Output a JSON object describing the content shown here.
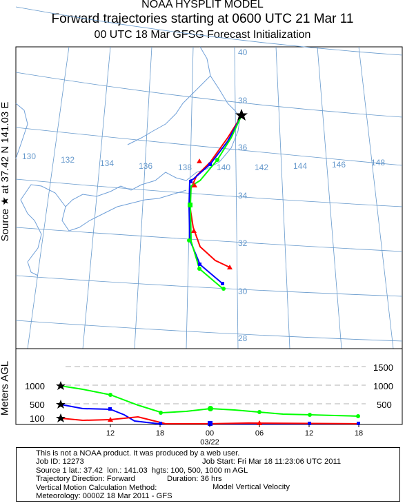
{
  "title": {
    "line1": "NOAA HYSPLIT MODEL",
    "line2": "Forward trajectories starting at 0600 UTC 21 Mar 11",
    "line3": "00 UTC 18 Mar    GFSG  Forecast Initialization"
  },
  "source_label": "Source ★ at    37.42 N  141.03 E",
  "vertical_label": "Meters AGL",
  "map": {
    "lat_labels": [
      "40",
      "38",
      "36",
      "34",
      "32",
      "30",
      "28"
    ],
    "lon_labels": [
      "130",
      "132",
      "134",
      "136",
      "138",
      "140",
      "142",
      "144",
      "146",
      "148"
    ],
    "source": {
      "lat": 37.42,
      "lon": 141.03
    },
    "colors": {
      "red": "#ff0000",
      "blue": "#0000ff",
      "green": "#00ff00",
      "grid": "#6699cc",
      "coast": "#6f9fd8"
    }
  },
  "trajectories": [
    {
      "height_m": 100,
      "color": "#ff0000",
      "marker": "triangle"
    },
    {
      "height_m": 500,
      "color": "#0000ff",
      "marker": "square"
    },
    {
      "height_m": 1000,
      "color": "#00ff00",
      "marker": "circle"
    }
  ],
  "height_panel": {
    "left_labels": [
      "1000",
      "500",
      "100"
    ],
    "right_labels": [
      "1500",
      "1000",
      "500"
    ],
    "x_ticks": [
      "12",
      "18",
      "00",
      "06",
      "12",
      "18"
    ],
    "date_label": "03/22"
  },
  "footer": {
    "line1": "This is not a NOAA product. It was produced by a web user.",
    "job_id": "Job ID: 12273",
    "job_start": "Job Start: Fri Mar 18 11:23:06 UTC 2011",
    "source": "Source 1 lat.: 37.42  lon.: 141.03  hgts: 100, 500, 1000 m AGL",
    "direction": "Trajectory Direction: Forward",
    "duration": "Duration: 36 hrs",
    "vmethod": "Vertical Motion Calculation Method:",
    "vmethod_val": "Model Vertical Velocity",
    "meteo": "Meteorology: 0000Z 18 Mar 2011 - GFS"
  }
}
